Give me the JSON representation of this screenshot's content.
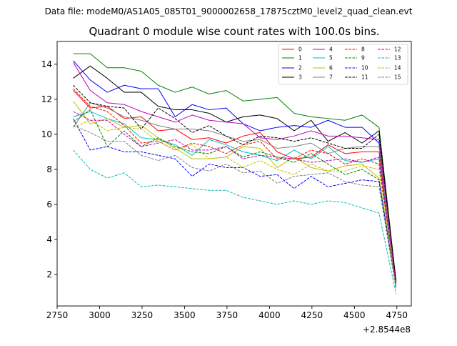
{
  "header": {
    "data_file_text": "Data file: modeM0/AS1A05_085T01_9000002658_17875cztM0_level2_quad_clean.evt"
  },
  "chart_data": {
    "type": "line",
    "title": "Quadrant 0 module wise count rates with 100.0s bins.",
    "xlabel": "",
    "ylabel": "",
    "x_offset_label": "+2.8544e8",
    "xlim": [
      2750,
      4835
    ],
    "ylim": [
      0.2,
      15.3
    ],
    "x_ticks": [
      2750,
      3000,
      3250,
      3500,
      3750,
      4000,
      4250,
      4500,
      4750
    ],
    "x_tick_labels": [
      "2750",
      "3000",
      "3250",
      "3500",
      "3750",
      "4000",
      "4250",
      "4500",
      "4750"
    ],
    "y_ticks": [
      2,
      4,
      6,
      8,
      10,
      12,
      14
    ],
    "y_tick_labels": [
      "2",
      "4",
      "6",
      "8",
      "10",
      "12",
      "14"
    ],
    "grid": false,
    "legend_position": "top-right",
    "x": [
      2845,
      2945,
      3045,
      3145,
      3245,
      3345,
      3445,
      3545,
      3645,
      3745,
      3845,
      3945,
      4045,
      4145,
      4245,
      4345,
      4445,
      4545,
      4645,
      4745
    ],
    "series": [
      {
        "name": "0",
        "color": "#ff0000",
        "dash": "solid",
        "values": [
          12.5,
          11.5,
          11.6,
          10.9,
          11.0,
          10.2,
          10.3,
          9.7,
          9.8,
          9.5,
          9.9,
          10.1,
          9.0,
          8.6,
          8.7,
          9.4,
          8.9,
          9.0,
          9.0,
          1.5
        ]
      },
      {
        "name": "1",
        "color": "#008000",
        "dash": "solid",
        "values": [
          14.6,
          14.6,
          13.8,
          13.8,
          13.6,
          12.8,
          12.4,
          12.7,
          12.3,
          12.5,
          11.9,
          12.0,
          12.1,
          11.2,
          11.0,
          10.9,
          10.8,
          11.1,
          10.4,
          1.6
        ]
      },
      {
        "name": "2",
        "color": "#0000ff",
        "dash": "solid",
        "values": [
          14.2,
          13.1,
          12.4,
          12.8,
          12.6,
          12.6,
          11.0,
          11.7,
          11.4,
          11.5,
          10.6,
          10.2,
          10.4,
          10.5,
          10.4,
          10.8,
          10.4,
          10.4,
          9.5,
          1.7
        ]
      },
      {
        "name": "3",
        "color": "#000000",
        "dash": "solid",
        "values": [
          13.2,
          13.9,
          13.2,
          12.4,
          12.4,
          11.6,
          11.4,
          11.4,
          11.2,
          10.7,
          11.0,
          11.1,
          10.9,
          10.2,
          10.8,
          9.6,
          10.1,
          9.5,
          10.2,
          1.6
        ]
      },
      {
        "name": "4",
        "color": "#bf00bf",
        "dash": "solid",
        "values": [
          14.1,
          12.5,
          11.8,
          11.7,
          11.3,
          11.0,
          10.7,
          11.1,
          10.8,
          10.7,
          10.6,
          9.8,
          9.7,
          9.9,
          10.2,
          9.9,
          9.9,
          9.8,
          9.7,
          1.4
        ]
      },
      {
        "name": "5",
        "color": "#00bfbf",
        "dash": "solid",
        "values": [
          11.0,
          11.3,
          10.9,
          10.6,
          9.8,
          9.7,
          9.4,
          8.8,
          9.7,
          9.4,
          9.0,
          8.8,
          8.5,
          9.1,
          8.6,
          9.3,
          8.5,
          8.4,
          8.6,
          1.3
        ]
      },
      {
        "name": "6",
        "color": "#bfbf00",
        "dash": "solid",
        "values": [
          11.9,
          10.6,
          10.9,
          10.4,
          10.5,
          9.8,
          9.2,
          8.6,
          8.6,
          8.7,
          9.3,
          9.2,
          8.1,
          8.7,
          8.1,
          7.9,
          8.2,
          8.3,
          7.5,
          1.2
        ]
      },
      {
        "name": "7",
        "color": "#808080",
        "dash": "solid",
        "values": [
          10.4,
          11.8,
          11.5,
          11.0,
          10.8,
          10.5,
          10.3,
          10.3,
          10.2,
          9.9,
          9.6,
          9.7,
          9.2,
          9.3,
          9.5,
          8.9,
          9.2,
          9.3,
          9.3,
          1.3
        ]
      },
      {
        "name": "8",
        "color": "#ff0000",
        "dash": "dashed",
        "values": [
          12.6,
          11.6,
          11.3,
          10.5,
          9.5,
          9.6,
          9.1,
          9.5,
          9.3,
          8.9,
          9.4,
          9.6,
          8.6,
          8.6,
          9.1,
          8.9,
          8.3,
          8.6,
          8.3,
          1.5
        ]
      },
      {
        "name": "9",
        "color": "#008000",
        "dash": "dashed",
        "values": [
          10.7,
          11.4,
          9.3,
          10.2,
          9.3,
          9.8,
          9.3,
          9.0,
          8.9,
          9.3,
          8.7,
          9.0,
          8.7,
          8.4,
          8.9,
          8.3,
          7.7,
          8.0,
          7.4,
          1.4
        ]
      },
      {
        "name": "10",
        "color": "#0000ff",
        "dash": "dashed",
        "values": [
          10.9,
          9.1,
          9.3,
          9.0,
          9.0,
          8.8,
          8.6,
          7.6,
          8.3,
          8.1,
          8.1,
          7.6,
          7.7,
          6.9,
          7.6,
          7.0,
          7.2,
          7.4,
          7.3,
          1.3
        ]
      },
      {
        "name": "11",
        "color": "#000000",
        "dash": "dashed",
        "values": [
          12.8,
          11.8,
          11.6,
          11.5,
          10.3,
          11.5,
          10.9,
          10.1,
          10.5,
          9.9,
          9.4,
          9.9,
          9.8,
          9.6,
          9.8,
          9.5,
          9.2,
          9.2,
          10.0,
          1.6
        ]
      },
      {
        "name": "12",
        "color": "#bf00bf",
        "dash": "dashed",
        "values": [
          11.3,
          10.8,
          10.8,
          10.0,
          9.3,
          9.5,
          9.7,
          9.1,
          9.1,
          9.3,
          8.6,
          8.8,
          8.7,
          8.6,
          8.4,
          8.5,
          8.6,
          8.4,
          8.7,
          1.4
        ]
      },
      {
        "name": "13",
        "color": "#00bfbf",
        "dash": "dashed",
        "values": [
          9.1,
          8.0,
          7.5,
          7.8,
          7.0,
          7.1,
          7.0,
          6.9,
          6.8,
          6.8,
          6.4,
          6.2,
          6.0,
          6.2,
          6.0,
          6.2,
          6.1,
          5.8,
          5.5,
          0.9
        ]
      },
      {
        "name": "14",
        "color": "#bfbf00",
        "dash": "dashed",
        "values": [
          10.4,
          10.8,
          10.2,
          10.4,
          10.3,
          9.6,
          9.1,
          9.4,
          8.6,
          8.7,
          8.1,
          8.5,
          8.0,
          7.7,
          8.3,
          7.9,
          7.9,
          8.2,
          8.0,
          1.2
        ]
      },
      {
        "name": "15",
        "color": "#808080",
        "dash": "dashed",
        "values": [
          10.5,
          10.1,
          9.6,
          9.6,
          8.8,
          8.5,
          8.8,
          8.1,
          7.9,
          8.3,
          7.8,
          7.9,
          7.2,
          7.6,
          7.7,
          7.8,
          7.3,
          7.1,
          7.0,
          1.2
        ]
      }
    ]
  }
}
